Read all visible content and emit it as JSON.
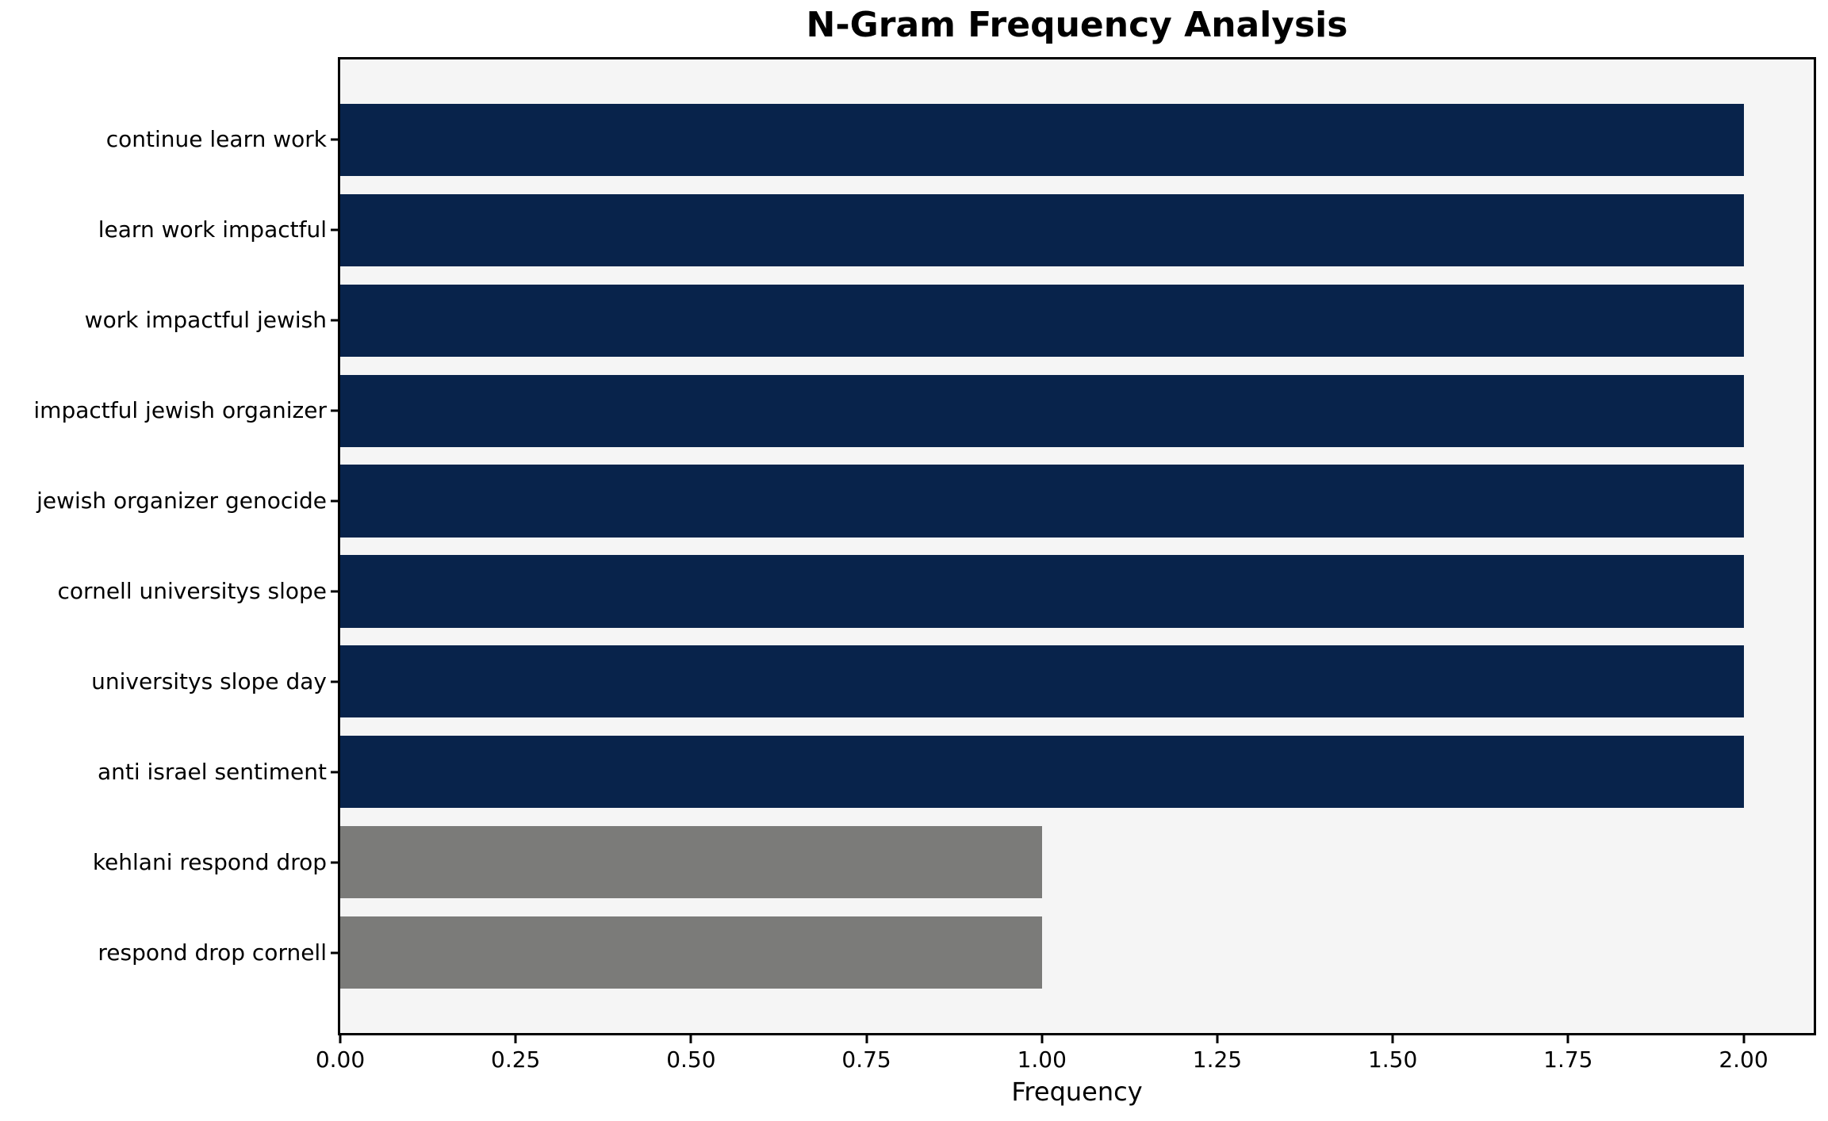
{
  "chart_data": {
    "type": "bar",
    "orientation": "horizontal",
    "title": "N-Gram Frequency Analysis",
    "xlabel": "Frequency",
    "ylabel": "",
    "categories": [
      "continue learn work",
      "learn work impactful",
      "work impactful jewish",
      "impactful jewish organizer",
      "jewish organizer genocide",
      "cornell universitys slope",
      "universitys slope day",
      "anti israel sentiment",
      "kehlani respond drop",
      "respond drop cornell"
    ],
    "values": [
      2,
      2,
      2,
      2,
      2,
      2,
      2,
      2,
      1,
      1
    ],
    "bar_colors": [
      "#08234b",
      "#08234b",
      "#08234b",
      "#08234b",
      "#08234b",
      "#08234b",
      "#08234b",
      "#08234b",
      "#7b7b79",
      "#7b7b79"
    ],
    "xlim": [
      0,
      2.1
    ],
    "xticks": [
      0,
      0.25,
      0.5,
      0.75,
      1.0,
      1.25,
      1.5,
      1.75,
      2.0
    ],
    "xtick_labels": [
      "0.00",
      "0.25",
      "0.50",
      "0.75",
      "1.00",
      "1.25",
      "1.50",
      "1.75",
      "2.00"
    ],
    "grid": false,
    "legend": null,
    "bar_height": 0.8,
    "y_margin": 0.89,
    "plot_background": "#f5f5f5",
    "figure_background": "#ffffff",
    "colors": {
      "frequency_2": "#08234b",
      "frequency_1": "#7b7b79"
    }
  }
}
